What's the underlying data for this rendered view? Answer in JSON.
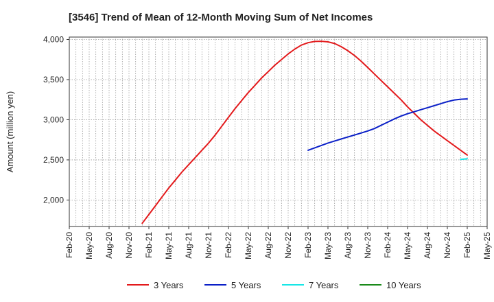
{
  "chart_data": {
    "type": "line",
    "title": "[3546]  Trend of Mean of 12-Month Moving Sum of Net Incomes",
    "xlabel": "",
    "ylabel": "Amount (million yen)",
    "ylim": [
      1670,
      4030
    ],
    "yticks": [
      2000,
      2500,
      3000,
      3500,
      4000
    ],
    "ytick_labels": [
      "2,000",
      "2,500",
      "3,000",
      "3,500",
      "4,000"
    ],
    "xlim": [
      "2020-02",
      "2025-05"
    ],
    "xtick_labels": [
      "Feb-20",
      "May-20",
      "Aug-20",
      "Nov-20",
      "Feb-21",
      "May-21",
      "Aug-21",
      "Nov-21",
      "Feb-22",
      "May-22",
      "Aug-22",
      "Nov-22",
      "Feb-23",
      "May-23",
      "Aug-23",
      "Nov-23",
      "Feb-24",
      "May-24",
      "Aug-24",
      "Nov-24",
      "Feb-25",
      "May-25"
    ],
    "grid": true,
    "legend_position": "bottom",
    "series": [
      {
        "name": "3 Years",
        "color": "#e31a1c",
        "x": [
          "2021-01",
          "2021-02",
          "2021-03",
          "2021-04",
          "2021-05",
          "2021-06",
          "2021-07",
          "2021-08",
          "2021-09",
          "2021-10",
          "2021-11",
          "2021-12",
          "2022-01",
          "2022-02",
          "2022-03",
          "2022-04",
          "2022-05",
          "2022-06",
          "2022-07",
          "2022-08",
          "2022-09",
          "2022-10",
          "2022-11",
          "2022-12",
          "2023-01",
          "2023-02",
          "2023-03",
          "2023-04",
          "2023-05",
          "2023-06",
          "2023-07",
          "2023-08",
          "2023-09",
          "2023-10",
          "2023-11",
          "2023-12",
          "2024-01",
          "2024-02",
          "2024-03",
          "2024-04",
          "2024-05",
          "2024-06",
          "2024-07",
          "2024-08",
          "2024-09",
          "2024-10",
          "2024-11",
          "2024-12",
          "2025-01",
          "2025-02"
        ],
        "values": [
          1710,
          1820,
          1930,
          2040,
          2150,
          2250,
          2350,
          2440,
          2530,
          2620,
          2710,
          2810,
          2920,
          3030,
          3140,
          3240,
          3340,
          3430,
          3520,
          3600,
          3680,
          3750,
          3820,
          3880,
          3930,
          3960,
          3975,
          3978,
          3970,
          3950,
          3910,
          3860,
          3800,
          3730,
          3650,
          3570,
          3490,
          3410,
          3330,
          3250,
          3160,
          3080,
          3000,
          2930,
          2860,
          2800,
          2740,
          2680,
          2620,
          2560
        ]
      },
      {
        "name": "5 Years",
        "color": "#0a1fc7",
        "x": [
          "2023-02",
          "2023-03",
          "2023-04",
          "2023-05",
          "2023-06",
          "2023-07",
          "2023-08",
          "2023-09",
          "2023-10",
          "2023-11",
          "2023-12",
          "2024-01",
          "2024-02",
          "2024-03",
          "2024-04",
          "2024-05",
          "2024-06",
          "2024-07",
          "2024-08",
          "2024-09",
          "2024-10",
          "2024-11",
          "2024-12",
          "2025-01",
          "2025-02"
        ],
        "values": [
          2620,
          2650,
          2680,
          2710,
          2735,
          2760,
          2785,
          2810,
          2835,
          2860,
          2890,
          2930,
          2970,
          3010,
          3045,
          3075,
          3100,
          3125,
          3150,
          3175,
          3200,
          3225,
          3245,
          3255,
          3260
        ]
      },
      {
        "name": "7 Years",
        "color": "#18e6e6",
        "x": [
          "2025-01",
          "2025-02"
        ],
        "values": [
          2505,
          2515
        ]
      },
      {
        "name": "10 Years",
        "color": "#1a8a1a",
        "x": [],
        "values": []
      }
    ]
  }
}
